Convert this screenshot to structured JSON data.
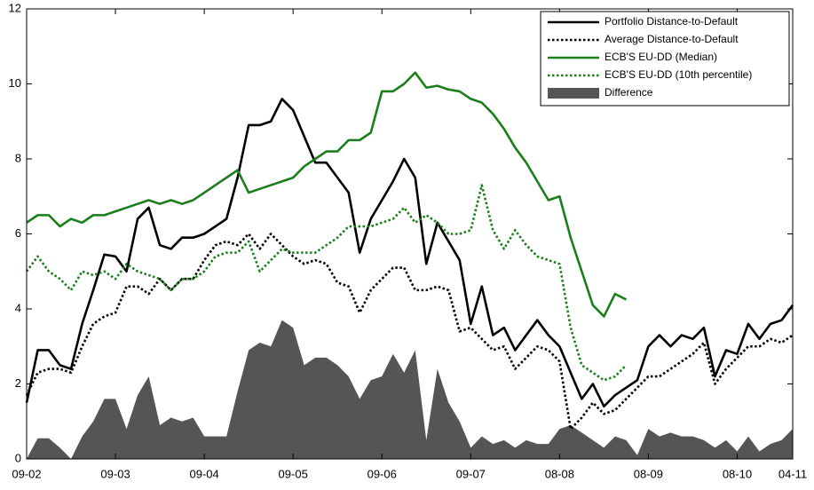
{
  "chart_data": {
    "type": "line",
    "categories": [
      "09-02",
      null,
      null,
      null,
      null,
      null,
      null,
      null,
      "09-03",
      null,
      null,
      null,
      null,
      null,
      null,
      null,
      "09-04",
      null,
      null,
      null,
      null,
      null,
      null,
      null,
      "09-05",
      null,
      null,
      null,
      null,
      null,
      null,
      null,
      "09-06",
      null,
      null,
      null,
      null,
      null,
      null,
      null,
      "09-07",
      null,
      null,
      null,
      null,
      null,
      null,
      null,
      "08-08",
      null,
      null,
      null,
      null,
      null,
      null,
      null,
      "08-09",
      null,
      null,
      null,
      null,
      null,
      null,
      null,
      "08-10",
      null,
      null,
      null,
      null,
      "04-11"
    ],
    "series": [
      {
        "name": "Portfolio Distance-to-Default",
        "color": "#000000",
        "style": "solid",
        "values": [
          1.5,
          2.9,
          2.9,
          2.5,
          2.4,
          3.6,
          4.5,
          5.45,
          5.4,
          5.0,
          6.4,
          6.7,
          5.7,
          5.6,
          5.9,
          5.9,
          6.0,
          6.2,
          6.4,
          7.5,
          8.9,
          8.9,
          9.0,
          9.6,
          9.3,
          8.6,
          7.9,
          7.9,
          7.5,
          7.1,
          5.5,
          6.4,
          6.9,
          7.4,
          8.0,
          7.5,
          5.2,
          6.3,
          5.8,
          5.3,
          3.6,
          4.6,
          3.3,
          3.5,
          2.9,
          3.3,
          3.7,
          3.3,
          3.0,
          2.3,
          1.6,
          2.0,
          1.4,
          1.7,
          1.9,
          2.1,
          3.0,
          3.3,
          3.0,
          3.3,
          3.2,
          3.5,
          2.2,
          2.9,
          2.8,
          3.6,
          3.2,
          3.6,
          3.7,
          4.1
        ]
      },
      {
        "name": "Average Distance-to-Default",
        "color": "#000000",
        "style": "dotted",
        "values": [
          1.7,
          2.3,
          2.4,
          2.4,
          2.3,
          3.0,
          3.6,
          3.8,
          3.9,
          4.6,
          4.6,
          4.4,
          4.8,
          4.5,
          4.8,
          4.8,
          5.3,
          5.7,
          5.8,
          5.7,
          6.0,
          5.6,
          6.0,
          5.7,
          5.4,
          5.2,
          5.3,
          5.2,
          4.7,
          4.6,
          3.9,
          4.5,
          4.8,
          5.1,
          5.1,
          4.5,
          4.5,
          4.6,
          4.5,
          3.4,
          3.5,
          3.2,
          2.9,
          3.0,
          2.4,
          2.7,
          3.0,
          2.9,
          2.6,
          0.8,
          1.1,
          1.5,
          1.2,
          1.3,
          1.6,
          1.9,
          2.2,
          2.2,
          2.4,
          2.6,
          2.8,
          3.1,
          2.0,
          2.4,
          2.7,
          3.0,
          3.0,
          3.2,
          3.1,
          3.3
        ]
      },
      {
        "name": "ECB'S EU-DD (Median)",
        "color": "#1a7f1a",
        "style": "solid",
        "values": [
          6.3,
          6.5,
          6.5,
          6.2,
          6.4,
          6.3,
          6.5,
          6.5,
          6.6,
          6.7,
          6.8,
          6.9,
          6.8,
          6.9,
          6.8,
          6.9,
          7.1,
          7.3,
          7.5,
          7.7,
          7.1,
          7.2,
          7.3,
          7.4,
          7.5,
          7.8,
          8.0,
          8.2,
          8.2,
          8.5,
          8.5,
          8.7,
          9.8,
          9.8,
          10.0,
          10.3,
          9.9,
          9.95,
          9.85,
          9.8,
          9.6,
          9.5,
          9.2,
          8.8,
          8.3,
          7.9,
          7.4,
          6.9,
          7.0,
          5.9,
          5.0,
          4.1,
          3.8,
          4.4,
          4.25,
          null,
          null,
          null,
          null,
          null,
          null,
          null,
          null,
          null,
          null,
          null,
          null,
          null,
          null,
          null
        ]
      },
      {
        "name": "ECB'S EU-DD (10th percentile)",
        "color": "#1a7f1a",
        "style": "dotted",
        "values": [
          5.0,
          5.4,
          5.0,
          4.8,
          4.5,
          5.0,
          4.9,
          5.0,
          4.8,
          5.2,
          5.0,
          4.9,
          4.8,
          4.5,
          4.8,
          4.8,
          5.0,
          5.4,
          5.5,
          5.5,
          5.8,
          5.0,
          5.3,
          5.6,
          5.5,
          5.5,
          5.5,
          5.7,
          5.9,
          6.2,
          6.2,
          6.2,
          6.3,
          6.4,
          6.7,
          6.3,
          6.5,
          6.3,
          6.0,
          6.0,
          6.1,
          7.3,
          6.1,
          5.6,
          6.1,
          5.7,
          5.4,
          5.3,
          5.2,
          3.5,
          2.5,
          2.3,
          2.1,
          2.2,
          2.5,
          null,
          null,
          null,
          null,
          null,
          null,
          null,
          null,
          null,
          null,
          null,
          null,
          null,
          null,
          null
        ]
      },
      {
        "name": "Difference",
        "color": "#555555",
        "style": "area",
        "values": [
          0,
          0.55,
          0.55,
          0.3,
          0,
          0.6,
          1.0,
          1.6,
          1.6,
          0.8,
          1.7,
          2.2,
          0.9,
          1.1,
          1.0,
          1.1,
          0.6,
          0.6,
          0.6,
          1.8,
          2.9,
          3.1,
          3.0,
          3.7,
          3.5,
          2.5,
          2.7,
          2.7,
          2.5,
          2.2,
          1.6,
          2.1,
          2.2,
          2.8,
          2.3,
          2.9,
          0.5,
          2.4,
          1.5,
          1.0,
          0.3,
          0.6,
          0.4,
          0.5,
          0.3,
          0.5,
          0.4,
          0.4,
          0.8,
          0.9,
          0.7,
          0.5,
          0.3,
          0.6,
          0.5,
          0.1,
          0.8,
          0.6,
          0.7,
          0.6,
          0.6,
          0.5,
          0.3,
          0.5,
          0.2,
          0.6,
          0.2,
          0.4,
          0.5,
          0.8
        ]
      }
    ],
    "ylim": [
      0,
      12
    ],
    "yticks": [
      0,
      2,
      4,
      6,
      8,
      10,
      12
    ],
    "grid": false,
    "legend": "upper right"
  }
}
